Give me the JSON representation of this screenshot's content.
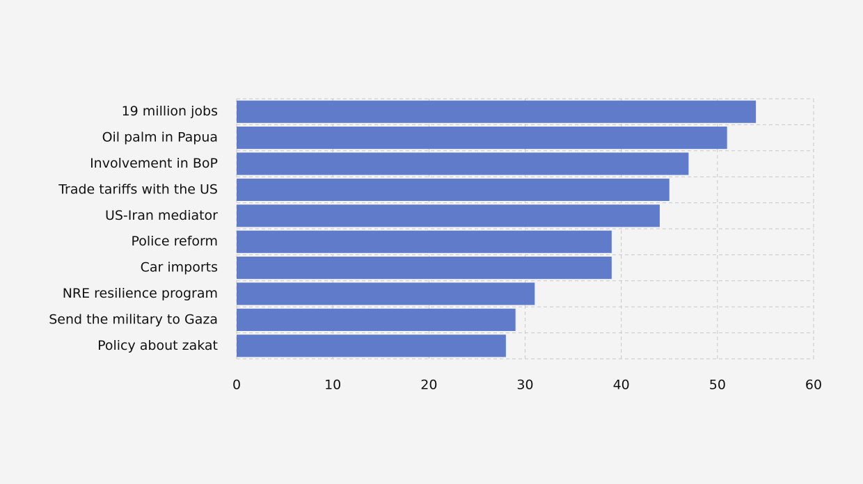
{
  "chart_data": {
    "type": "bar",
    "orientation": "horizontal",
    "categories": [
      "19 million jobs",
      "Oil palm in Papua",
      "Involvement in BoP",
      "Trade tariffs with the US",
      "US-Iran mediator",
      "Police reform",
      "Car imports",
      "NRE resilience program",
      "Send the military to Gaza",
      "Policy about zakat"
    ],
    "values": [
      54,
      51,
      47,
      45,
      44,
      39,
      39,
      31,
      29,
      28
    ],
    "color": "#5f7bc9",
    "xlim": [
      0,
      60
    ],
    "xticks": [
      0,
      10,
      20,
      30,
      40,
      50,
      60
    ],
    "grid": true
  }
}
